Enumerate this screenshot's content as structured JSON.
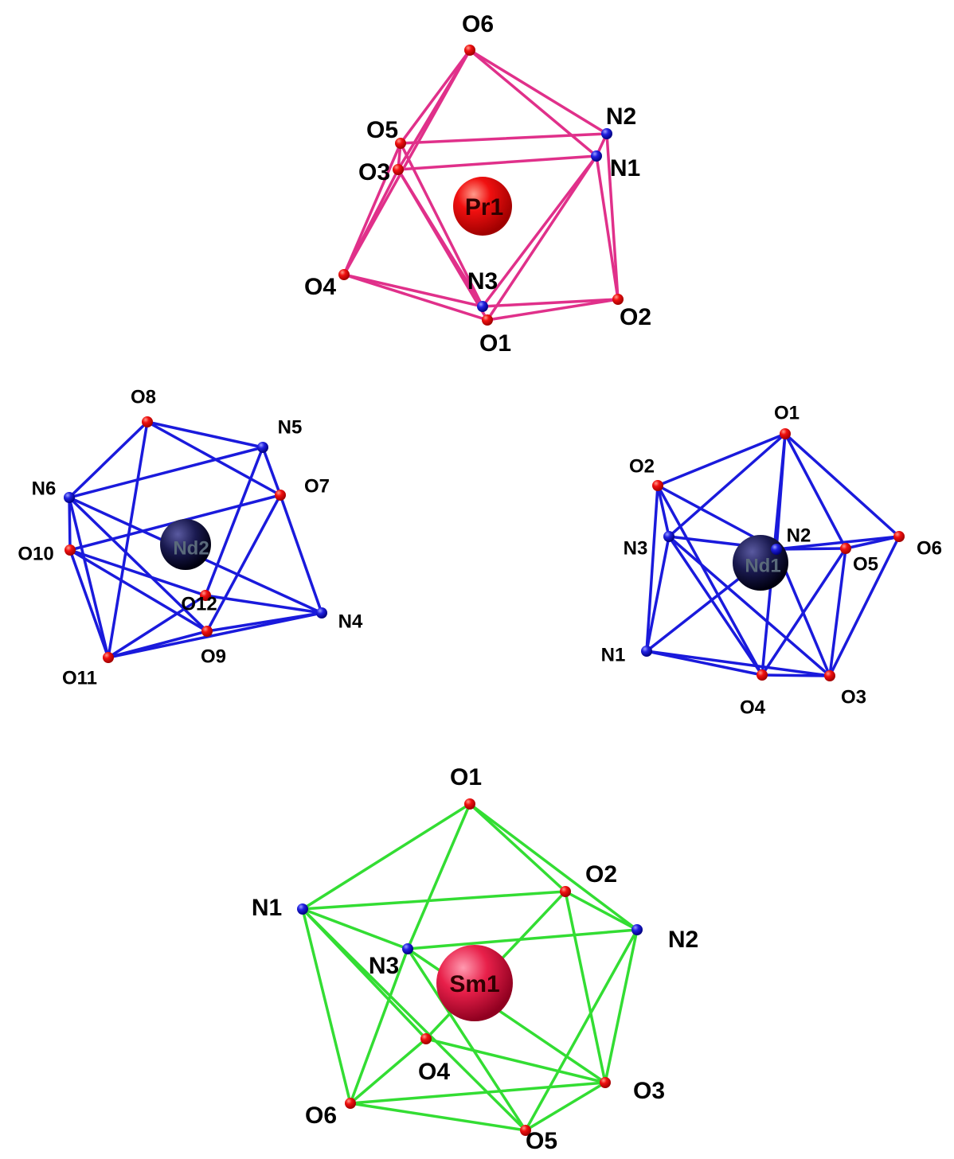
{
  "polyhedra": [
    {
      "center": "Pr1",
      "atoms": [
        "O6",
        "N2",
        "O5",
        "N1",
        "O3",
        "O4",
        "N3",
        "O2",
        "O1"
      ]
    },
    {
      "center": "Nd2",
      "atoms": [
        "O8",
        "N5",
        "N6",
        "O7",
        "O10",
        "O12",
        "N4",
        "O9",
        "O11"
      ]
    },
    {
      "center": "Nd1",
      "atoms": [
        "O1",
        "O2",
        "N2",
        "N3",
        "O5",
        "O6",
        "N1",
        "O4",
        "O3"
      ]
    },
    {
      "center": "Sm1",
      "atoms": [
        "O1",
        "O2",
        "N1",
        "N2",
        "N3",
        "O4",
        "O3",
        "O6",
        "O5"
      ]
    }
  ]
}
